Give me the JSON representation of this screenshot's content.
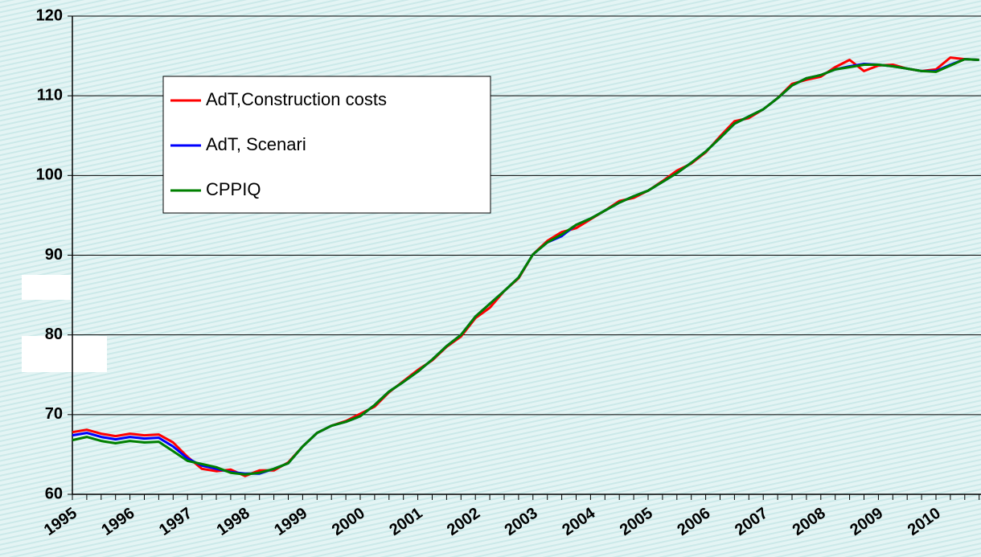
{
  "chart_data": {
    "type": "line",
    "categories": [
      "1995",
      null,
      null,
      null,
      "1996",
      null,
      null,
      null,
      "1997",
      null,
      null,
      null,
      "1998",
      null,
      null,
      null,
      "1999",
      null,
      null,
      null,
      "2000",
      null,
      null,
      null,
      "2001",
      null,
      null,
      null,
      "2002",
      null,
      null,
      null,
      "2003",
      null,
      null,
      null,
      "2004",
      null,
      null,
      null,
      "2005",
      null,
      null,
      null,
      "2006",
      null,
      null,
      null,
      "2007",
      null,
      null,
      null,
      "2008",
      null,
      null,
      null,
      "2009",
      null,
      null,
      null,
      "2010",
      null,
      null,
      null
    ],
    "series": [
      {
        "name": "AdT,Construction costs",
        "color": "#ff0000",
        "values": [
          67.8,
          68.1,
          67.6,
          67.3,
          67.6,
          67.4,
          67.5,
          66.5,
          64.7,
          63.2,
          62.9,
          63.1,
          62.3,
          63.0,
          63.0,
          64.0,
          66.0,
          67.7,
          68.6,
          69.2,
          70.1,
          71.0,
          72.8,
          74.2,
          75.6,
          76.8,
          78.5,
          79.8,
          82.1,
          83.4,
          85.5,
          87.1,
          90.1,
          91.8,
          92.9,
          93.4,
          94.5,
          95.6,
          96.8,
          97.2,
          98.1,
          99.3,
          100.6,
          101.5,
          102.9,
          104.9,
          106.8,
          107.2,
          108.3,
          109.7,
          111.5,
          112.0,
          112.4,
          113.6,
          114.5,
          113.1,
          113.8,
          113.9,
          113.4,
          113.1,
          113.3,
          114.8,
          114.6,
          114.5
        ]
      },
      {
        "name": "AdT, Scenari",
        "color": "#0000ff",
        "values": [
          67.4,
          67.7,
          67.2,
          66.9,
          67.2,
          67.0,
          67.1,
          66.0,
          64.5,
          63.6,
          63.2,
          62.8,
          62.6,
          62.6,
          63.2,
          63.9,
          66.0,
          67.7,
          68.6,
          69.1,
          69.8,
          71.2,
          72.9,
          74.1,
          75.4,
          76.9,
          78.6,
          80.0,
          82.3,
          83.9,
          85.5,
          87.2,
          90.1,
          91.6,
          92.4,
          93.8,
          94.6,
          95.6,
          96.6,
          97.4,
          98.1,
          99.2,
          100.3,
          101.6,
          103.0,
          104.7,
          106.5,
          107.4,
          108.3,
          109.7,
          111.3,
          112.2,
          112.6,
          113.3,
          113.7,
          114.0,
          113.9,
          113.7,
          113.4,
          113.1,
          113.1,
          113.9,
          114.6,
          114.5
        ]
      },
      {
        "name": "CPPIQ",
        "color": "#008000",
        "values": [
          66.8,
          67.2,
          66.7,
          66.4,
          66.7,
          66.5,
          66.6,
          65.4,
          64.2,
          63.8,
          63.4,
          62.7,
          62.5,
          62.7,
          63.2,
          63.9,
          66.0,
          67.7,
          68.6,
          69.1,
          69.8,
          71.2,
          72.9,
          74.1,
          75.4,
          76.9,
          78.6,
          80.0,
          82.3,
          83.9,
          85.5,
          87.2,
          90.1,
          91.6,
          92.6,
          93.8,
          94.6,
          95.6,
          96.6,
          97.4,
          98.1,
          99.2,
          100.3,
          101.6,
          103.0,
          104.7,
          106.5,
          107.4,
          108.3,
          109.7,
          111.3,
          112.2,
          112.6,
          113.3,
          113.6,
          113.9,
          113.9,
          113.7,
          113.4,
          113.1,
          113.0,
          113.8,
          114.6,
          114.5
        ]
      }
    ],
    "ylim": [
      60,
      120
    ],
    "yticks": [
      60,
      70,
      80,
      90,
      100,
      110,
      120
    ],
    "grid": true
  }
}
